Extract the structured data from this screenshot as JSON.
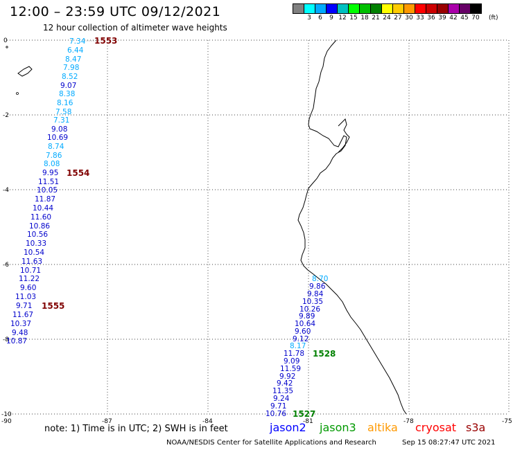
{
  "header": {
    "title": "12:00 – 23:59 UTC 09/12/2021",
    "subtitle": "12 hour collection of altimeter wave heights"
  },
  "legend": {
    "swatches": [
      {
        "color": "#808080",
        "label": ""
      },
      {
        "color": "#00ffff",
        "label": "3"
      },
      {
        "color": "#00aaff",
        "label": "6"
      },
      {
        "color": "#0000ff",
        "label": "9"
      },
      {
        "color": "#00c0c0",
        "label": "12"
      },
      {
        "color": "#00ff00",
        "label": "15"
      },
      {
        "color": "#00c000",
        "label": "18"
      },
      {
        "color": "#008000",
        "label": "21"
      },
      {
        "color": "#ffff00",
        "label": "24"
      },
      {
        "color": "#ffcc00",
        "label": "27"
      },
      {
        "color": "#ff9900",
        "label": "30"
      },
      {
        "color": "#ff0000",
        "label": "33"
      },
      {
        "color": "#cc0000",
        "label": "36"
      },
      {
        "color": "#990000",
        "label": "39"
      },
      {
        "color": "#aa00aa",
        "label": "42"
      },
      {
        "color": "#660066",
        "label": "45"
      },
      {
        "color": "#000000",
        "label": "70"
      }
    ],
    "unit": "(ft)"
  },
  "axes": {
    "x_ticks": [
      "-90",
      "-87",
      "-84",
      "-81",
      "-78",
      "-75"
    ],
    "y_ticks": [
      "0",
      "-2",
      "-4",
      "-6",
      "-8",
      "-10"
    ]
  },
  "tracks": {
    "west": [
      {
        "v": "7.34",
        "c": "#00aaff"
      },
      {
        "v": "6.44",
        "c": "#00aaff"
      },
      {
        "v": "8.47",
        "c": "#00aaff"
      },
      {
        "v": "7.98",
        "c": "#00aaff"
      },
      {
        "v": "8.52",
        "c": "#00aaff"
      },
      {
        "v": "9.07",
        "c": "#0000cc"
      },
      {
        "v": "8.38",
        "c": "#00aaff"
      },
      {
        "v": "8.16",
        "c": "#00aaff"
      },
      {
        "v": "7.58",
        "c": "#00aaff"
      },
      {
        "v": "7.31",
        "c": "#00aaff"
      },
      {
        "v": "9.08",
        "c": "#0000cc"
      },
      {
        "v": "10.69",
        "c": "#0000cc"
      },
      {
        "v": "8.74",
        "c": "#00aaff"
      },
      {
        "v": "7.86",
        "c": "#00aaff"
      },
      {
        "v": "8.08",
        "c": "#00aaff"
      },
      {
        "v": "9.95",
        "c": "#0000cc"
      },
      {
        "v": "11.51",
        "c": "#0000cc"
      },
      {
        "v": "10.05",
        "c": "#0000cc"
      },
      {
        "v": "11.87",
        "c": "#0000cc"
      },
      {
        "v": "10.44",
        "c": "#0000cc"
      },
      {
        "v": "11.60",
        "c": "#0000cc"
      },
      {
        "v": "10.86",
        "c": "#0000cc"
      },
      {
        "v": "10.56",
        "c": "#0000cc"
      },
      {
        "v": "10.33",
        "c": "#0000cc"
      },
      {
        "v": "10.54",
        "c": "#0000cc"
      },
      {
        "v": "11.63",
        "c": "#0000cc"
      },
      {
        "v": "10.71",
        "c": "#0000cc"
      },
      {
        "v": "11.22",
        "c": "#0000cc"
      },
      {
        "v": "9.60",
        "c": "#0000cc"
      },
      {
        "v": "11.03",
        "c": "#0000cc"
      },
      {
        "v": "9.71",
        "c": "#0000cc"
      },
      {
        "v": "11.67",
        "c": "#0000cc"
      },
      {
        "v": "10.37",
        "c": "#0000cc"
      },
      {
        "v": "9.48",
        "c": "#0000cc"
      },
      {
        "v": "10.87",
        "c": "#0000cc"
      }
    ],
    "east": [
      {
        "v": "8.70",
        "c": "#00aaff"
      },
      {
        "v": "9.86",
        "c": "#0000cc"
      },
      {
        "v": "9.84",
        "c": "#0000cc"
      },
      {
        "v": "10.35",
        "c": "#0000cc"
      },
      {
        "v": "10.26",
        "c": "#0000cc"
      },
      {
        "v": "9.89",
        "c": "#0000cc"
      },
      {
        "v": "10.64",
        "c": "#0000cc"
      },
      {
        "v": "9.60",
        "c": "#0000cc"
      },
      {
        "v": "9.12",
        "c": "#0000cc"
      },
      {
        "v": "8.17",
        "c": "#00aaff"
      },
      {
        "v": "11.78",
        "c": "#0000cc"
      },
      {
        "v": "9.09",
        "c": "#0000cc"
      },
      {
        "v": "11.59",
        "c": "#0000cc"
      },
      {
        "v": "9.92",
        "c": "#0000cc"
      },
      {
        "v": "9.42",
        "c": "#0000cc"
      },
      {
        "v": "11.35",
        "c": "#0000cc"
      },
      {
        "v": "9.24",
        "c": "#0000cc"
      },
      {
        "v": "9.71",
        "c": "#0000cc"
      },
      {
        "v": "10.76",
        "c": "#0000cc"
      }
    ]
  },
  "times": [
    {
      "t": "1553",
      "c": "#800000"
    },
    {
      "t": "1554",
      "c": "#800000"
    },
    {
      "t": "1555",
      "c": "#800000"
    },
    {
      "t": "1528",
      "c": "#008000"
    },
    {
      "t": "1527",
      "c": "#008000"
    }
  ],
  "footer": {
    "note": "note: 1) Time is in UTC; 2) SWH is in feet",
    "satellites": [
      {
        "name": "jason2",
        "color": "#0000ff"
      },
      {
        "name": "jason3",
        "color": "#009900"
      },
      {
        "name": "altika",
        "color": "#ff9900"
      },
      {
        "name": "cryosat",
        "color": "#ff0000"
      },
      {
        "name": "s3a",
        "color": "#990000"
      }
    ],
    "credit": "NOAA/NESDIS Center for Satellite Applications and Research",
    "timestamp": "Sep 15 08:27:47 UTC 2021"
  }
}
